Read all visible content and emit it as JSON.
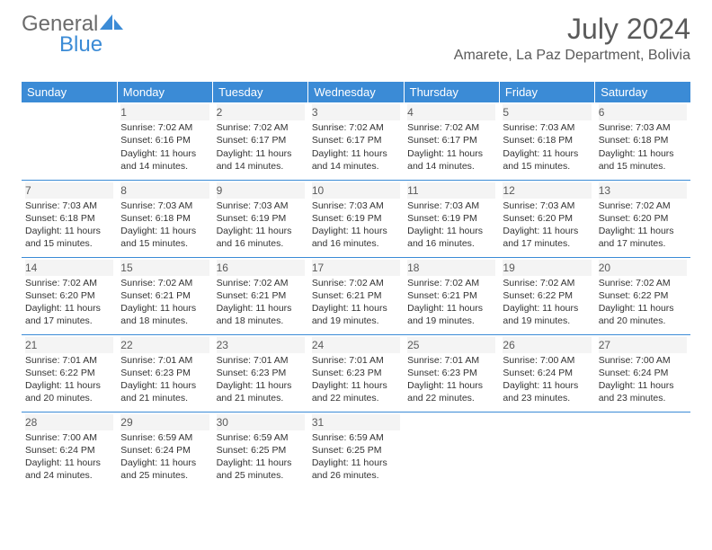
{
  "brand": {
    "part1": "General",
    "part2": "Blue"
  },
  "title": "July 2024",
  "location": "Amarete, La Paz Department, Bolivia",
  "colors": {
    "accent": "#3b8bd6",
    "header_text": "#ffffff",
    "body_text": "#333333",
    "muted_text": "#5a5a5a",
    "row_bg": "#f4f4f4",
    "page_bg": "#ffffff"
  },
  "day_headers": [
    "Sunday",
    "Monday",
    "Tuesday",
    "Wednesday",
    "Thursday",
    "Friday",
    "Saturday"
  ],
  "weeks": [
    [
      {
        "blank": true
      },
      {
        "day": 1,
        "sunrise": "7:02 AM",
        "sunset": "6:16 PM",
        "daylight": "11 hours and 14 minutes."
      },
      {
        "day": 2,
        "sunrise": "7:02 AM",
        "sunset": "6:17 PM",
        "daylight": "11 hours and 14 minutes."
      },
      {
        "day": 3,
        "sunrise": "7:02 AM",
        "sunset": "6:17 PM",
        "daylight": "11 hours and 14 minutes."
      },
      {
        "day": 4,
        "sunrise": "7:02 AM",
        "sunset": "6:17 PM",
        "daylight": "11 hours and 14 minutes."
      },
      {
        "day": 5,
        "sunrise": "7:03 AM",
        "sunset": "6:18 PM",
        "daylight": "11 hours and 15 minutes."
      },
      {
        "day": 6,
        "sunrise": "7:03 AM",
        "sunset": "6:18 PM",
        "daylight": "11 hours and 15 minutes."
      }
    ],
    [
      {
        "day": 7,
        "sunrise": "7:03 AM",
        "sunset": "6:18 PM",
        "daylight": "11 hours and 15 minutes."
      },
      {
        "day": 8,
        "sunrise": "7:03 AM",
        "sunset": "6:18 PM",
        "daylight": "11 hours and 15 minutes."
      },
      {
        "day": 9,
        "sunrise": "7:03 AM",
        "sunset": "6:19 PM",
        "daylight": "11 hours and 16 minutes."
      },
      {
        "day": 10,
        "sunrise": "7:03 AM",
        "sunset": "6:19 PM",
        "daylight": "11 hours and 16 minutes."
      },
      {
        "day": 11,
        "sunrise": "7:03 AM",
        "sunset": "6:19 PM",
        "daylight": "11 hours and 16 minutes."
      },
      {
        "day": 12,
        "sunrise": "7:03 AM",
        "sunset": "6:20 PM",
        "daylight": "11 hours and 17 minutes."
      },
      {
        "day": 13,
        "sunrise": "7:02 AM",
        "sunset": "6:20 PM",
        "daylight": "11 hours and 17 minutes."
      }
    ],
    [
      {
        "day": 14,
        "sunrise": "7:02 AM",
        "sunset": "6:20 PM",
        "daylight": "11 hours and 17 minutes."
      },
      {
        "day": 15,
        "sunrise": "7:02 AM",
        "sunset": "6:21 PM",
        "daylight": "11 hours and 18 minutes."
      },
      {
        "day": 16,
        "sunrise": "7:02 AM",
        "sunset": "6:21 PM",
        "daylight": "11 hours and 18 minutes."
      },
      {
        "day": 17,
        "sunrise": "7:02 AM",
        "sunset": "6:21 PM",
        "daylight": "11 hours and 19 minutes."
      },
      {
        "day": 18,
        "sunrise": "7:02 AM",
        "sunset": "6:21 PM",
        "daylight": "11 hours and 19 minutes."
      },
      {
        "day": 19,
        "sunrise": "7:02 AM",
        "sunset": "6:22 PM",
        "daylight": "11 hours and 19 minutes."
      },
      {
        "day": 20,
        "sunrise": "7:02 AM",
        "sunset": "6:22 PM",
        "daylight": "11 hours and 20 minutes."
      }
    ],
    [
      {
        "day": 21,
        "sunrise": "7:01 AM",
        "sunset": "6:22 PM",
        "daylight": "11 hours and 20 minutes."
      },
      {
        "day": 22,
        "sunrise": "7:01 AM",
        "sunset": "6:23 PM",
        "daylight": "11 hours and 21 minutes."
      },
      {
        "day": 23,
        "sunrise": "7:01 AM",
        "sunset": "6:23 PM",
        "daylight": "11 hours and 21 minutes."
      },
      {
        "day": 24,
        "sunrise": "7:01 AM",
        "sunset": "6:23 PM",
        "daylight": "11 hours and 22 minutes."
      },
      {
        "day": 25,
        "sunrise": "7:01 AM",
        "sunset": "6:23 PM",
        "daylight": "11 hours and 22 minutes."
      },
      {
        "day": 26,
        "sunrise": "7:00 AM",
        "sunset": "6:24 PM",
        "daylight": "11 hours and 23 minutes."
      },
      {
        "day": 27,
        "sunrise": "7:00 AM",
        "sunset": "6:24 PM",
        "daylight": "11 hours and 23 minutes."
      }
    ],
    [
      {
        "day": 28,
        "sunrise": "7:00 AM",
        "sunset": "6:24 PM",
        "daylight": "11 hours and 24 minutes."
      },
      {
        "day": 29,
        "sunrise": "6:59 AM",
        "sunset": "6:24 PM",
        "daylight": "11 hours and 25 minutes."
      },
      {
        "day": 30,
        "sunrise": "6:59 AM",
        "sunset": "6:25 PM",
        "daylight": "11 hours and 25 minutes."
      },
      {
        "day": 31,
        "sunrise": "6:59 AM",
        "sunset": "6:25 PM",
        "daylight": "11 hours and 26 minutes."
      },
      {
        "blank": true
      },
      {
        "blank": true
      },
      {
        "blank": true
      }
    ]
  ],
  "labels": {
    "sunrise_prefix": "Sunrise: ",
    "sunset_prefix": "Sunset: ",
    "daylight_prefix": "Daylight: "
  }
}
